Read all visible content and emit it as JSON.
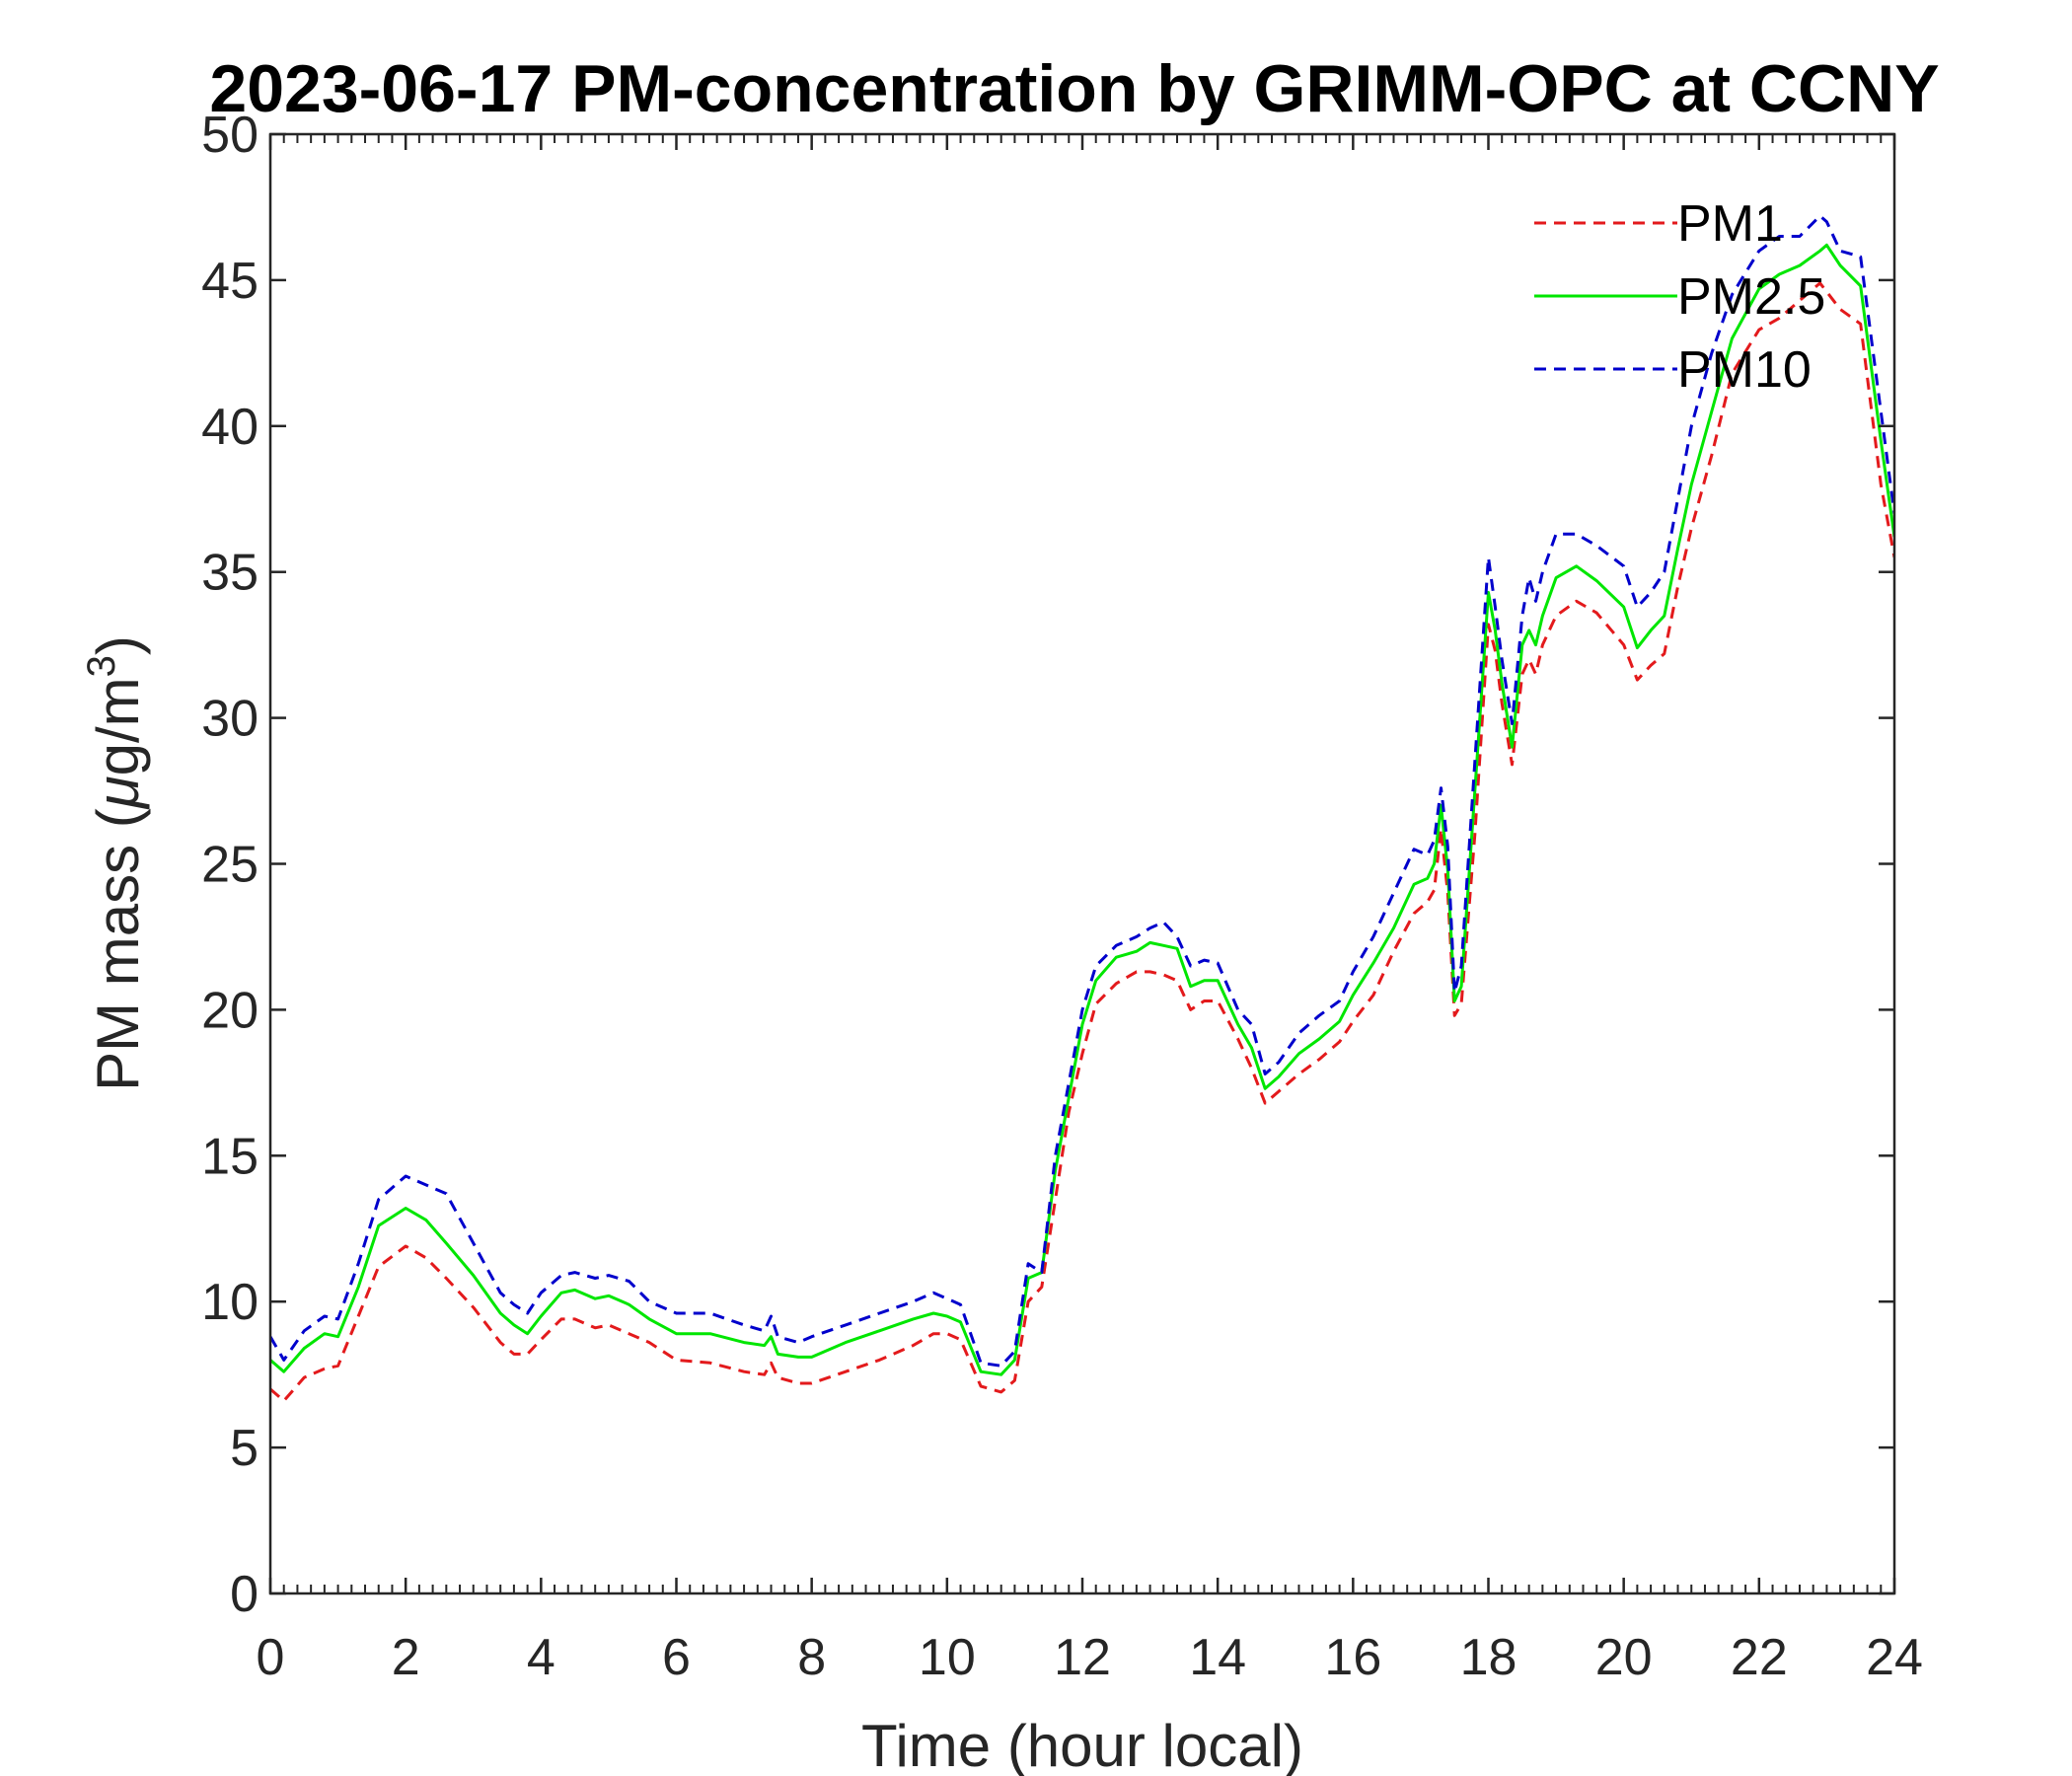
{
  "chart_data": {
    "type": "line",
    "title": "2023-06-17 PM-concentration by GRIMM-OPC at CCNY",
    "xlabel": "Time (hour local)",
    "ylabel_main": "PM mass (",
    "ylabel_mu": "μ",
    "ylabel_unit": "g/m",
    "ylabel_exp": "3",
    "ylabel_close": ")",
    "xlim": [
      0,
      24
    ],
    "ylim": [
      0,
      50
    ],
    "x_ticks": [
      "0",
      "2",
      "4",
      "6",
      "8",
      "10",
      "12",
      "14",
      "16",
      "18",
      "20",
      "22",
      "24"
    ],
    "y_ticks": [
      "0",
      "5",
      "10",
      "15",
      "20",
      "25",
      "30",
      "35",
      "40",
      "45",
      "50"
    ],
    "legend_position": "top-right",
    "x": [
      0,
      0.2,
      0.5,
      0.8,
      1.0,
      1.3,
      1.6,
      2.0,
      2.3,
      2.6,
      3.0,
      3.4,
      3.6,
      3.8,
      4.0,
      4.3,
      4.5,
      4.8,
      5.0,
      5.3,
      5.6,
      6.0,
      6.5,
      7.0,
      7.3,
      7.4,
      7.5,
      7.8,
      8.0,
      8.5,
      9.0,
      9.5,
      9.8,
      10.0,
      10.2,
      10.5,
      10.8,
      11.0,
      11.2,
      11.4,
      11.6,
      11.8,
      12.0,
      12.2,
      12.5,
      12.8,
      13.0,
      13.2,
      13.4,
      13.6,
      13.8,
      14.0,
      14.3,
      14.5,
      14.7,
      14.9,
      15.2,
      15.5,
      15.8,
      16.0,
      16.3,
      16.6,
      16.9,
      17.1,
      17.2,
      17.3,
      17.4,
      17.5,
      17.6,
      17.8,
      18.0,
      18.1,
      18.2,
      18.35,
      18.5,
      18.6,
      18.7,
      18.8,
      19.0,
      19.3,
      19.6,
      20.0,
      20.2,
      20.4,
      20.6,
      20.8,
      21.0,
      21.3,
      21.6,
      22.0,
      22.3,
      22.6,
      22.9,
      23.0,
      23.2,
      23.5,
      23.8,
      24.0
    ],
    "series": [
      {
        "name": "PM1",
        "color": "#e31a1c",
        "dash": true,
        "values": [
          7.0,
          6.6,
          7.4,
          7.7,
          7.8,
          9.5,
          11.2,
          11.9,
          11.5,
          10.8,
          9.8,
          8.6,
          8.2,
          8.2,
          8.7,
          9.4,
          9.4,
          9.1,
          9.2,
          8.9,
          8.6,
          8.0,
          7.9,
          7.6,
          7.5,
          7.9,
          7.4,
          7.2,
          7.2,
          7.6,
          8.0,
          8.5,
          8.9,
          8.9,
          8.7,
          7.1,
          6.9,
          7.3,
          10.0,
          10.5,
          13.5,
          16.5,
          18.5,
          20.2,
          20.9,
          21.3,
          21.3,
          21.2,
          21.0,
          20.0,
          20.3,
          20.3,
          19.0,
          18.0,
          16.8,
          17.2,
          17.8,
          18.3,
          18.9,
          19.6,
          20.5,
          22.0,
          23.3,
          23.7,
          24.1,
          26.2,
          24.0,
          19.8,
          20.2,
          26.0,
          33.2,
          32.3,
          30.5,
          28.4,
          31.5,
          32.0,
          31.5,
          32.5,
          33.5,
          34.0,
          33.6,
          32.5,
          31.3,
          31.8,
          32.2,
          34.5,
          36.5,
          39.0,
          41.8,
          43.3,
          43.7,
          44.3,
          44.9,
          44.6,
          44.0,
          43.5,
          38.0,
          35.5
        ]
      },
      {
        "name": "PM2.5",
        "color": "#00e600",
        "dash": false,
        "values": [
          8.0,
          7.6,
          8.4,
          8.9,
          8.8,
          10.5,
          12.6,
          13.2,
          12.8,
          12.0,
          10.9,
          9.6,
          9.2,
          8.9,
          9.5,
          10.3,
          10.4,
          10.1,
          10.2,
          9.9,
          9.4,
          8.9,
          8.9,
          8.6,
          8.5,
          8.8,
          8.2,
          8.1,
          8.1,
          8.6,
          9.0,
          9.4,
          9.6,
          9.5,
          9.3,
          7.6,
          7.5,
          8.0,
          10.8,
          11.0,
          14.5,
          17.0,
          19.5,
          21.0,
          21.8,
          22.0,
          22.3,
          22.2,
          22.1,
          20.8,
          21.0,
          21.0,
          19.5,
          18.7,
          17.3,
          17.7,
          18.5,
          19.0,
          19.6,
          20.5,
          21.6,
          22.8,
          24.3,
          24.5,
          25.0,
          27.0,
          24.8,
          20.3,
          20.8,
          27.5,
          34.3,
          33.0,
          31.2,
          29.0,
          32.5,
          33.0,
          32.5,
          33.5,
          34.8,
          35.2,
          34.7,
          33.8,
          32.4,
          33.0,
          33.5,
          35.8,
          38.0,
          40.5,
          43.0,
          44.7,
          45.2,
          45.5,
          46.0,
          46.2,
          45.5,
          44.8,
          39.5,
          36.2
        ]
      },
      {
        "name": "PM10",
        "color": "#0000cc",
        "dash": true,
        "values": [
          8.8,
          8.0,
          9.0,
          9.5,
          9.4,
          11.3,
          13.5,
          14.3,
          14.0,
          13.7,
          12.0,
          10.3,
          9.9,
          9.6,
          10.3,
          10.9,
          11.0,
          10.8,
          10.9,
          10.7,
          10.0,
          9.6,
          9.6,
          9.2,
          9.0,
          9.5,
          8.8,
          8.6,
          8.8,
          9.2,
          9.6,
          10.0,
          10.3,
          10.1,
          9.9,
          7.9,
          7.8,
          8.3,
          11.3,
          11.0,
          15.0,
          17.5,
          20.0,
          21.5,
          22.2,
          22.5,
          22.8,
          23.0,
          22.5,
          21.5,
          21.7,
          21.6,
          20.0,
          19.5,
          17.8,
          18.2,
          19.2,
          19.8,
          20.3,
          21.3,
          22.5,
          24.0,
          25.5,
          25.3,
          25.8,
          27.6,
          25.6,
          20.6,
          21.5,
          28.5,
          35.5,
          33.8,
          32.0,
          29.8,
          33.5,
          34.8,
          34.0,
          35.0,
          36.3,
          36.3,
          35.9,
          35.2,
          33.8,
          34.3,
          35.0,
          37.5,
          40.0,
          42.5,
          44.5,
          46.0,
          46.5,
          46.5,
          47.2,
          47.0,
          46.0,
          45.8,
          40.5,
          37.0
        ]
      }
    ]
  }
}
